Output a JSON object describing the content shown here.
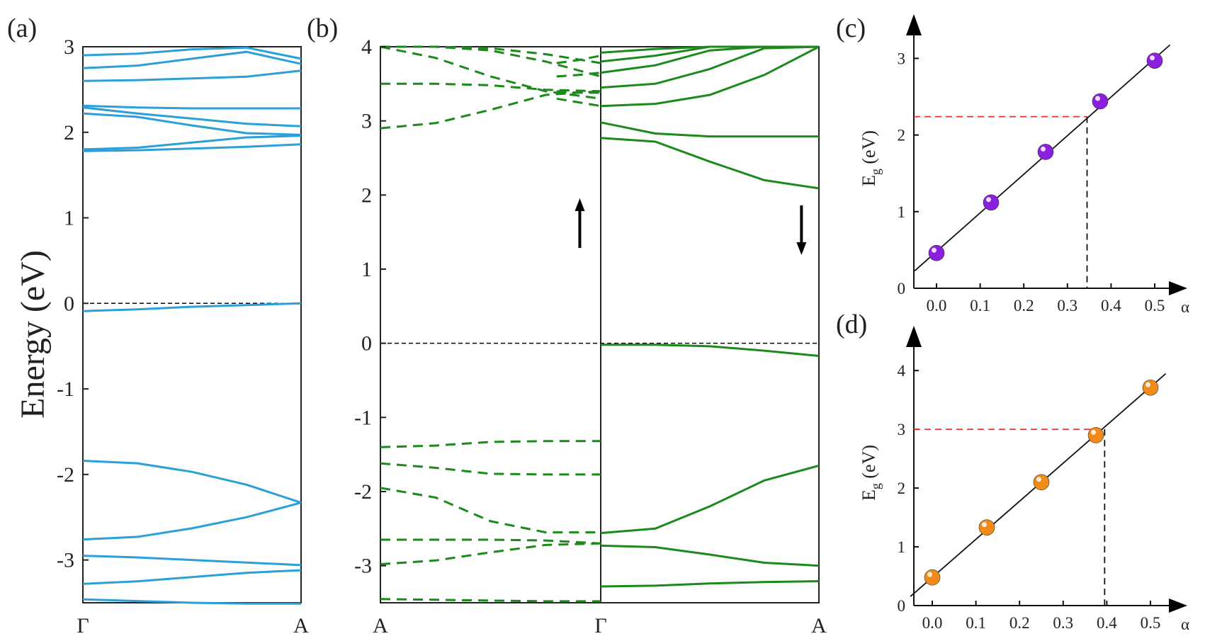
{
  "colors": {
    "panel_a_bands": "#2a9fd9",
    "panel_b_bands": "#1b8a1b",
    "panel_c_points": "#8a1fe0",
    "panel_d_points": "#f28a1a",
    "fermi_line": "#000000",
    "guide_red": "#e83a3a"
  },
  "chart_data": [
    {
      "panel": "(a)",
      "type": "line",
      "ylabel": "Energy (eV)",
      "xticks": [
        "Γ",
        "A"
      ],
      "ylim": [
        -3.5,
        3.0
      ],
      "yticks": [
        "3",
        "2",
        "1",
        "0",
        "-1",
        "-2",
        "-3"
      ],
      "fermi_level": 0,
      "x": [
        0,
        0.25,
        0.5,
        0.75,
        1.0
      ],
      "bands": [
        [
          2.9,
          2.92,
          2.97,
          2.99,
          2.86
        ],
        [
          2.75,
          2.78,
          2.86,
          2.94,
          2.8
        ],
        [
          2.6,
          2.61,
          2.63,
          2.65,
          2.72
        ],
        [
          2.31,
          2.29,
          2.28,
          2.28,
          2.28
        ],
        [
          2.29,
          2.22,
          2.16,
          2.1,
          2.07
        ],
        [
          2.22,
          2.18,
          2.08,
          1.99,
          1.97
        ],
        [
          1.8,
          1.82,
          1.88,
          1.94,
          1.96
        ],
        [
          1.78,
          1.79,
          1.81,
          1.83,
          1.86
        ],
        [
          -0.09,
          -0.07,
          -0.04,
          -0.02,
          0.0
        ],
        [
          -1.84,
          -1.87,
          -1.97,
          -2.12,
          -2.33
        ],
        [
          -2.76,
          -2.73,
          -2.63,
          -2.5,
          -2.33
        ],
        [
          -2.95,
          -2.97,
          -3.0,
          -3.03,
          -3.06
        ],
        [
          -3.28,
          -3.25,
          -3.2,
          -3.15,
          -3.12
        ],
        [
          -3.46,
          -3.48,
          -3.5,
          -3.51,
          -3.51
        ]
      ]
    },
    {
      "panel": "(b)",
      "type": "line",
      "xticks": [
        "A",
        "Γ",
        "A"
      ],
      "ylim": [
        -3.5,
        4.0
      ],
      "yticks": [
        "4",
        "3",
        "2",
        "1",
        "0",
        "-1",
        "-2",
        "-3"
      ],
      "fermi_level": 0,
      "x": [
        0,
        0.25,
        0.5,
        0.75,
        1.0
      ],
      "series": [
        {
          "spin": "up",
          "style": "dashed",
          "side": "left",
          "bands": [
            [
              4.0,
              3.85,
              3.6,
              3.4,
              3.3
            ],
            [
              3.5,
              3.5,
              3.48,
              3.42,
              3.4
            ],
            [
              2.9,
              2.97,
              3.15,
              3.35,
              3.4
            ],
            [
              4.0,
              4.0,
              3.95,
              3.8,
              3.6
            ],
            [
              4.0,
              4.0,
              3.98,
              3.9,
              3.78
            ],
            [
              -1.4,
              -1.38,
              -1.33,
              -1.32,
              -1.32
            ],
            [
              -1.62,
              -1.68,
              -1.76,
              -1.77,
              -1.77
            ],
            [
              -1.95,
              -2.08,
              -2.4,
              -2.55,
              -2.55
            ],
            [
              -2.65,
              -2.65,
              -2.65,
              -2.66,
              -2.7
            ],
            [
              -2.98,
              -2.93,
              -2.82,
              -2.72,
              -2.7
            ],
            [
              -3.45,
              -3.46,
              -3.47,
              -3.48,
              -3.48
            ]
          ]
        },
        {
          "spin": "up",
          "style": "dashed",
          "side": "right-of-left-panel",
          "bands": [
            [
              3.3,
              3.25,
              3.2
            ],
            [
              3.4,
              3.38,
              3.38
            ],
            [
              3.6,
              3.62,
              3.65
            ],
            [
              3.78,
              3.82,
              3.88
            ]
          ]
        },
        {
          "spin": "down",
          "style": "solid",
          "side": "right",
          "bands": [
            [
              3.2,
              3.23,
              3.35,
              3.62,
              4.0
            ],
            [
              3.45,
              3.5,
              3.7,
              3.98,
              4.0
            ],
            [
              3.65,
              3.75,
              3.95,
              4.0,
              4.0
            ],
            [
              3.8,
              3.88,
              4.0,
              4.0,
              4.0
            ],
            [
              3.92,
              3.97,
              4.0,
              4.0,
              4.0
            ],
            [
              2.98,
              2.83,
              2.79,
              2.79,
              2.79
            ],
            [
              2.77,
              2.72,
              2.45,
              2.2,
              2.09
            ],
            [
              -0.02,
              -0.02,
              -0.04,
              -0.1,
              -0.17
            ],
            [
              -2.56,
              -2.5,
              -2.2,
              -1.85,
              -1.65
            ],
            [
              -2.73,
              -2.75,
              -2.85,
              -2.96,
              -3.0
            ],
            [
              -3.28,
              -3.27,
              -3.24,
              -3.22,
              -3.21
            ]
          ]
        }
      ],
      "annotations": [
        "spin-up arrow",
        "spin-down arrow"
      ]
    },
    {
      "panel": "(c)",
      "type": "scatter",
      "xlabel": "α",
      "ylabel_main": "E",
      "ylabel_sub": "g",
      "ylabel_unit": " (eV)",
      "x": [
        0.0,
        0.125,
        0.25,
        0.375,
        0.5
      ],
      "y": [
        0.46,
        1.12,
        1.78,
        2.44,
        2.97
      ],
      "xlim": [
        -0.05,
        0.55
      ],
      "ylim": [
        0,
        3.3
      ],
      "xticks": [
        "0.0",
        "0.1",
        "0.2",
        "0.3",
        "0.4",
        "0.5"
      ],
      "yticks": [
        "0",
        "1",
        "2",
        "3"
      ],
      "fit_line": {
        "slope": 5.04,
        "intercept": 0.48
      },
      "guide": {
        "y": 2.24,
        "x": 0.345
      }
    },
    {
      "panel": "(d)",
      "type": "scatter",
      "xlabel": "α",
      "ylabel_main": "E",
      "ylabel_sub": "g",
      "ylabel_unit": " (eV)",
      "x": [
        0.0,
        0.125,
        0.25,
        0.375,
        0.5
      ],
      "y": [
        0.48,
        1.33,
        2.1,
        2.9,
        3.71
      ],
      "xlim": [
        -0.05,
        0.55
      ],
      "ylim": [
        0,
        4.4
      ],
      "xticks": [
        "0.0",
        "0.1",
        "0.2",
        "0.3",
        "0.4",
        "0.5"
      ],
      "yticks": [
        "0",
        "1",
        "2",
        "3",
        "4"
      ],
      "fit_line": {
        "slope": 6.48,
        "intercept": 0.48
      },
      "guide": {
        "y": 3.0,
        "x": 0.395
      }
    }
  ]
}
